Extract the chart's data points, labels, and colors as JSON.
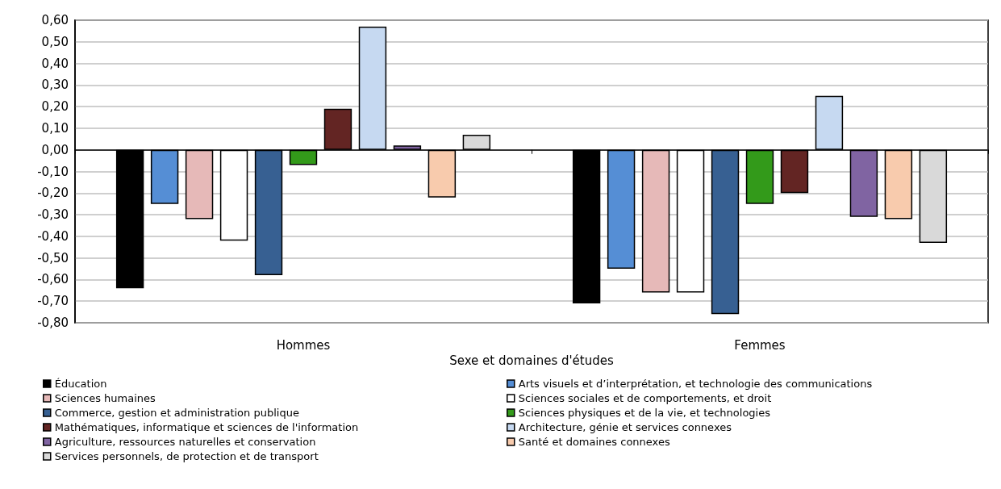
{
  "chart_data": {
    "type": "bar",
    "xlabel": "Sexe et domaines d'études",
    "categories": [
      "Hommes",
      "Femmes"
    ],
    "series": [
      {
        "name": "Éducation",
        "color": "#000000",
        "values": [
          -0.64,
          -0.71
        ]
      },
      {
        "name": "Arts visuels et d’interprétation, et technologie des communications",
        "color": "#558ed5",
        "values": [
          -0.25,
          -0.55
        ]
      },
      {
        "name": "Sciences humaines",
        "color": "#e6b9b8",
        "values": [
          -0.32,
          -0.66
        ]
      },
      {
        "name": "Sciences sociales et de comportements, et droit",
        "color": "#ffffff",
        "values": [
          -0.42,
          -0.66
        ]
      },
      {
        "name": "Commerce, gestion et administration publique",
        "color": "#376092",
        "values": [
          -0.58,
          -0.76
        ]
      },
      {
        "name": "Sciences physiques et de la vie, et technologies",
        "color": "#339a1a",
        "values": [
          -0.07,
          -0.25
        ]
      },
      {
        "name": "Mathématiques, informatique et sciences de l'information",
        "color": "#632523",
        "values": [
          0.19,
          -0.2
        ]
      },
      {
        "name": "Architecture, génie et services connexes",
        "color": "#c6d9f1",
        "values": [
          0.57,
          0.25
        ]
      },
      {
        "name": "Agriculture, ressources naturelles et conservation",
        "color": "#8064a2",
        "values": [
          0.02,
          -0.31
        ]
      },
      {
        "name": "Santé et domaines connexes",
        "color": "#f8cbad",
        "values": [
          -0.22,
          -0.32
        ]
      },
      {
        "name": "Services personnels, de protection et de transport",
        "color": "#d9d9d9",
        "values": [
          0.07,
          -0.43
        ]
      }
    ],
    "ylim": [
      -0.8,
      0.6
    ],
    "yticks": [
      {
        "value": -0.8,
        "label": "-0,80"
      },
      {
        "value": -0.7,
        "label": "-0,70"
      },
      {
        "value": -0.6,
        "label": "-0,60"
      },
      {
        "value": -0.5,
        "label": "-0,50"
      },
      {
        "value": -0.4,
        "label": "-0,40"
      },
      {
        "value": -0.3,
        "label": "-0,30"
      },
      {
        "value": -0.2,
        "label": "-0,20"
      },
      {
        "value": -0.1,
        "label": "-0,10"
      },
      {
        "value": 0,
        "label": "0,00"
      },
      {
        "value": 0.1,
        "label": "0,10"
      },
      {
        "value": 0.2,
        "label": "0,20"
      },
      {
        "value": 0.3,
        "label": "0,30"
      },
      {
        "value": 0.4,
        "label": "0,40"
      },
      {
        "value": 0.5,
        "label": "0,50"
      },
      {
        "value": 0.6,
        "label": "0,60"
      }
    ],
    "grid": "y",
    "legend": "bottom"
  }
}
